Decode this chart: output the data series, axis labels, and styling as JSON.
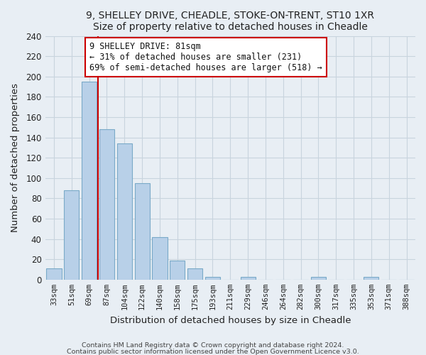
{
  "title1": "9, SHELLEY DRIVE, CHEADLE, STOKE-ON-TRENT, ST10 1XR",
  "title2": "Size of property relative to detached houses in Cheadle",
  "xlabel": "Distribution of detached houses by size in Cheadle",
  "ylabel": "Number of detached properties",
  "bar_labels": [
    "33sqm",
    "51sqm",
    "69sqm",
    "87sqm",
    "104sqm",
    "122sqm",
    "140sqm",
    "158sqm",
    "175sqm",
    "193sqm",
    "211sqm",
    "229sqm",
    "246sqm",
    "264sqm",
    "282sqm",
    "300sqm",
    "317sqm",
    "335sqm",
    "353sqm",
    "371sqm",
    "388sqm"
  ],
  "bar_values": [
    11,
    88,
    195,
    148,
    134,
    95,
    42,
    19,
    11,
    3,
    0,
    3,
    0,
    0,
    0,
    3,
    0,
    0,
    3,
    0,
    0
  ],
  "bar_color": "#b8d0e8",
  "bar_edge_color": "#7aaac8",
  "vline_color": "#cc0000",
  "ylim": [
    0,
    240
  ],
  "yticks": [
    0,
    20,
    40,
    60,
    80,
    100,
    120,
    140,
    160,
    180,
    200,
    220,
    240
  ],
  "annotation_line1": "9 SHELLEY DRIVE: 81sqm",
  "annotation_line2": "← 31% of detached houses are smaller (231)",
  "annotation_line3": "69% of semi-detached houses are larger (518) →",
  "footer1": "Contains HM Land Registry data © Crown copyright and database right 2024.",
  "footer2": "Contains public sector information licensed under the Open Government Licence v3.0.",
  "background_color": "#e8eef4",
  "plot_bg_color": "#e8eef4",
  "grid_color": "#c8d4de"
}
